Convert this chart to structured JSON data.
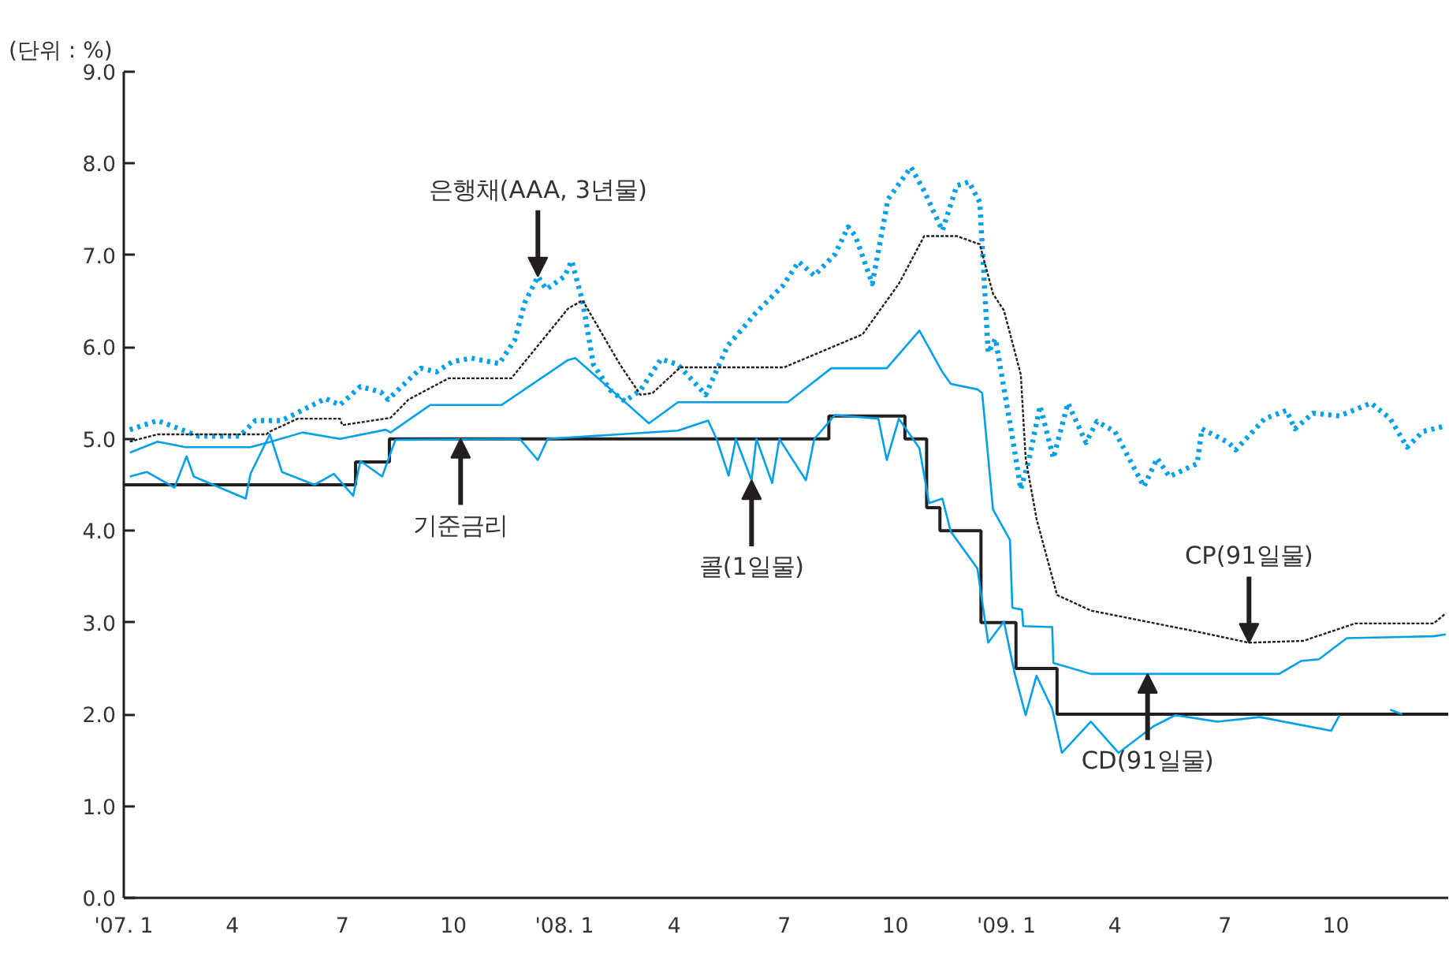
{
  "chart_data": {
    "type": "line",
    "grid": false,
    "xlim": [
      "2007-01-01",
      "2010-01-02"
    ],
    "xticks": [
      {
        "value": "2007-01",
        "label": "'07. 1"
      },
      {
        "value": "2007-04",
        "label": "4"
      },
      {
        "value": "2007-07",
        "label": "7"
      },
      {
        "value": "2007-10",
        "label": "10"
      },
      {
        "value": "2008-01",
        "label": "'08. 1"
      },
      {
        "value": "2008-04",
        "label": "4"
      },
      {
        "value": "2008-07",
        "label": "7"
      },
      {
        "value": "2008-10",
        "label": "10"
      },
      {
        "value": "2009-01",
        "label": "'09. 1"
      },
      {
        "value": "2009-04",
        "label": "4"
      },
      {
        "value": "2009-07",
        "label": "7"
      },
      {
        "value": "2009-10",
        "label": "10"
      }
    ],
    "ylim": [
      0,
      9
    ],
    "yticks": [
      {
        "value": 0,
        "label": "0.0"
      },
      {
        "value": 1,
        "label": "1.0"
      },
      {
        "value": 2,
        "label": "2.0"
      },
      {
        "value": 3,
        "label": "3.0"
      },
      {
        "value": 4,
        "label": "4.0"
      },
      {
        "value": 5,
        "label": "5.0"
      },
      {
        "value": 6,
        "label": "6.0"
      },
      {
        "value": 7,
        "label": "7.0"
      },
      {
        "value": 8,
        "label": "8.0"
      },
      {
        "value": 9,
        "label": "9.0"
      }
    ],
    "series": [
      {
        "type": "line",
        "color": "#00a0e9",
        "line_style": "dotted",
        "x": [
          "2007-01-06",
          "2007-01-29",
          "2007-03-04",
          "2007-04-07",
          "2007-04-20",
          "2007-05-12",
          "2007-06-17",
          "2007-06-29",
          "2007-07-16",
          "2007-08-02",
          "2007-08-08",
          "2007-09-04",
          "2007-09-17",
          "2007-09-30",
          "2007-10-16",
          "2007-11-08",
          "2007-11-21",
          "2007-11-29",
          "2007-12-10",
          "2007-12-17",
          "2008-01-01",
          "2008-01-07",
          "2008-01-16",
          "2008-01-25",
          "2008-02-08",
          "2008-02-20",
          "2008-03-04",
          "2008-03-21",
          "2008-04-04",
          "2008-04-27",
          "2008-05-15",
          "2008-06-08",
          "2008-06-30",
          "2008-07-13",
          "2008-07-26",
          "2008-08-12",
          "2008-08-23",
          "2008-08-29",
          "2008-09-12",
          "2008-09-25",
          "2008-10-14",
          "2008-10-25",
          "2008-11-09",
          "2008-11-21",
          "2008-12-01",
          "2008-12-10",
          "2008-12-17",
          "2008-12-23",
          "2009-01-06",
          "2009-01-13",
          "2009-01-20",
          "2009-01-29",
          "2009-02-09",
          "2009-02-21",
          "2009-03-08",
          "2009-03-17",
          "2009-04-01",
          "2009-04-25",
          "2009-05-06",
          "2009-05-16",
          "2009-06-08",
          "2009-06-12",
          "2009-07-04",
          "2009-07-10",
          "2009-08-03",
          "2009-08-21",
          "2009-08-28",
          "2009-09-12",
          "2009-10-04",
          "2009-10-30",
          "2009-11-15",
          "2009-11-29",
          "2009-12-12",
          "2009-12-30"
        ],
        "values": [
          5.1,
          5.2,
          5.03,
          5.03,
          5.2,
          5.2,
          5.44,
          5.37,
          5.57,
          5.51,
          5.43,
          5.77,
          5.73,
          5.84,
          5.88,
          5.82,
          6.08,
          6.48,
          6.77,
          6.63,
          6.77,
          6.94,
          6.5,
          5.81,
          5.53,
          5.41,
          5.53,
          5.87,
          5.81,
          5.48,
          6.01,
          6.38,
          6.67,
          6.93,
          6.78,
          7.01,
          7.31,
          7.21,
          6.69,
          7.61,
          7.96,
          7.7,
          7.27,
          7.76,
          7.8,
          7.58,
          5.94,
          6.09,
          5.02,
          4.45,
          4.79,
          5.36,
          4.79,
          5.39,
          4.96,
          5.19,
          5.08,
          4.48,
          4.79,
          4.59,
          4.73,
          5.11,
          4.96,
          4.88,
          5.22,
          5.31,
          5.11,
          5.28,
          5.25,
          5.39,
          5.22,
          4.91,
          5.08,
          5.14
        ]
      },
      {
        "type": "line",
        "color": "#231f20",
        "line_style": "dotted",
        "x": [
          "2007-01-06",
          "2007-01-29",
          "2007-04-29",
          "2007-05-02",
          "2007-05-25",
          "2007-06-29",
          "2007-07-01",
          "2007-08-10",
          "2007-08-25",
          "2007-09-27",
          "2007-11-18",
          "2008-01-04",
          "2008-01-16",
          "2008-02-16",
          "2008-03-04",
          "2008-03-14",
          "2008-04-06",
          "2008-07-01",
          "2008-09-04",
          "2008-10-04",
          "2008-10-25",
          "2008-11-21",
          "2008-12-10",
          "2008-12-21",
          "2008-12-30",
          "2009-01-13",
          "2009-01-17",
          "2009-01-26",
          "2009-02-12",
          "2009-03-12",
          "2009-06-08",
          "2009-07-21",
          "2009-09-04",
          "2009-10-17",
          "2009-12-21",
          "2009-12-31"
        ],
        "values": [
          4.97,
          5.05,
          5.05,
          5.08,
          5.22,
          5.22,
          5.15,
          5.23,
          5.43,
          5.66,
          5.66,
          6.42,
          6.51,
          5.81,
          5.48,
          5.5,
          5.78,
          5.78,
          6.14,
          6.69,
          7.21,
          7.21,
          7.12,
          6.58,
          6.4,
          5.7,
          4.79,
          4.13,
          3.3,
          3.13,
          2.9,
          2.78,
          2.8,
          2.99,
          2.99,
          3.1
        ]
      },
      {
        "type": "line",
        "color": "#00a0e9",
        "line_style": "solid",
        "x": [
          "2007-01-06",
          "2007-01-29",
          "2007-02-21",
          "2007-04-16",
          "2007-05-03",
          "2007-05-29",
          "2007-06-29",
          "2007-08-06",
          "2007-08-10",
          "2007-09-12",
          "2007-11-10",
          "2008-01-04",
          "2008-01-10",
          "2008-03-11",
          "2008-04-04",
          "2008-07-04",
          "2008-08-09",
          "2008-09-24",
          "2008-10-21",
          "2008-11-09",
          "2008-11-16",
          "2008-12-08",
          "2008-12-12",
          "2008-12-21",
          "2009-01-04",
          "2009-01-06",
          "2009-01-14",
          "2009-01-15",
          "2009-02-08",
          "2009-02-09",
          "2009-03-12",
          "2009-08-15",
          "2009-09-02",
          "2009-09-17",
          "2009-10-10",
          "2009-12-21",
          "2009-12-31"
        ],
        "values": [
          4.85,
          4.97,
          4.91,
          4.91,
          4.97,
          5.07,
          5.0,
          5.1,
          5.07,
          5.37,
          5.37,
          5.86,
          5.88,
          5.17,
          5.4,
          5.4,
          5.77,
          5.77,
          6.18,
          5.73,
          5.6,
          5.54,
          5.5,
          4.23,
          3.9,
          3.16,
          3.14,
          2.96,
          2.95,
          2.56,
          2.44,
          2.44,
          2.58,
          2.6,
          2.83,
          2.85,
          2.87
        ]
      },
      {
        "type": "step",
        "color": "#231f20",
        "line_style": "solid",
        "x": [
          "2007-01-01",
          "2007-07-12",
          "2007-08-09",
          "2008-08-07",
          "2008-10-09",
          "2008-10-27",
          "2008-11-07",
          "2008-12-11",
          "2009-01-09",
          "2009-02-12",
          "2010-01-02"
        ],
        "values": [
          4.5,
          4.75,
          5.0,
          5.25,
          5.0,
          4.25,
          4.0,
          3.0,
          2.5,
          2.0,
          2.0
        ]
      },
      {
        "type": "line",
        "color": "#00a0e9",
        "line_style": "solid",
        "x": [
          "2007-01-06",
          "2007-01-20",
          "2007-02-12",
          "2007-02-22",
          "2007-02-28",
          "2007-04-12",
          "2007-04-16",
          "2007-05-02",
          "2007-05-12",
          "2007-06-08",
          "2007-06-24",
          "2007-07-10",
          "2007-07-16",
          "2007-08-03",
          "2007-08-14",
          "2007-11-25",
          "2007-12-10",
          "2007-12-18",
          "2008-04-04",
          "2008-04-29",
          "2008-05-06",
          "2008-05-16",
          "2008-05-22",
          "2008-06-04",
          "2008-06-08",
          "2008-06-21",
          "2008-06-27",
          "2008-07-19",
          "2008-07-26",
          "2008-08-12",
          "2008-09-17",
          "2008-09-24",
          "2008-10-04",
          "2008-10-21",
          "2008-10-29",
          "2008-11-09",
          "2008-11-16",
          "2008-12-08",
          "2008-12-17",
          "2008-12-30",
          "2009-01-08",
          "2009-01-17",
          "2009-01-26",
          "2009-02-08",
          "2009-02-16",
          "2009-03-12",
          "2009-04-04",
          "2009-05-03",
          "2009-05-21",
          "2009-06-25",
          "2009-07-30",
          "2009-09-27",
          "2009-10-04",
          "2009-10-20",
          "2009-11-15",
          "2009-11-25"
        ],
        "values": [
          4.59,
          4.64,
          4.47,
          4.81,
          4.59,
          4.35,
          4.62,
          5.05,
          4.64,
          4.5,
          4.62,
          4.38,
          4.76,
          4.59,
          4.99,
          5.0,
          4.77,
          5.0,
          5.09,
          5.2,
          5.0,
          4.6,
          5.0,
          4.55,
          5.0,
          4.52,
          5.0,
          4.55,
          5.0,
          5.26,
          5.22,
          4.77,
          5.22,
          4.9,
          4.3,
          4.35,
          3.99,
          3.59,
          2.78,
          3.01,
          2.44,
          1.99,
          2.42,
          2.06,
          1.58,
          1.92,
          1.58,
          1.87,
          1.99,
          1.92,
          1.97,
          1.82,
          1.99,
          null,
          2.05,
          2.0
        ]
      }
    ],
    "annotations": [
      "(단위 : %)",
      {
        "text": "은행채(AAA, 3년물)",
        "x": "2007-12-10",
        "y": 6.77
      },
      {
        "text": "기준금리",
        "x": "2007-10-07",
        "y": 5.0
      },
      {
        "text": "콜(1일물)",
        "x": "2008-06-04",
        "y": 4.55
      },
      {
        "text": "CP(91일물)",
        "x": "2009-07-21",
        "y": 2.78
      },
      {
        "text": "CD(91일물)",
        "x": "2009-04-28",
        "y": 2.44
      }
    ]
  }
}
